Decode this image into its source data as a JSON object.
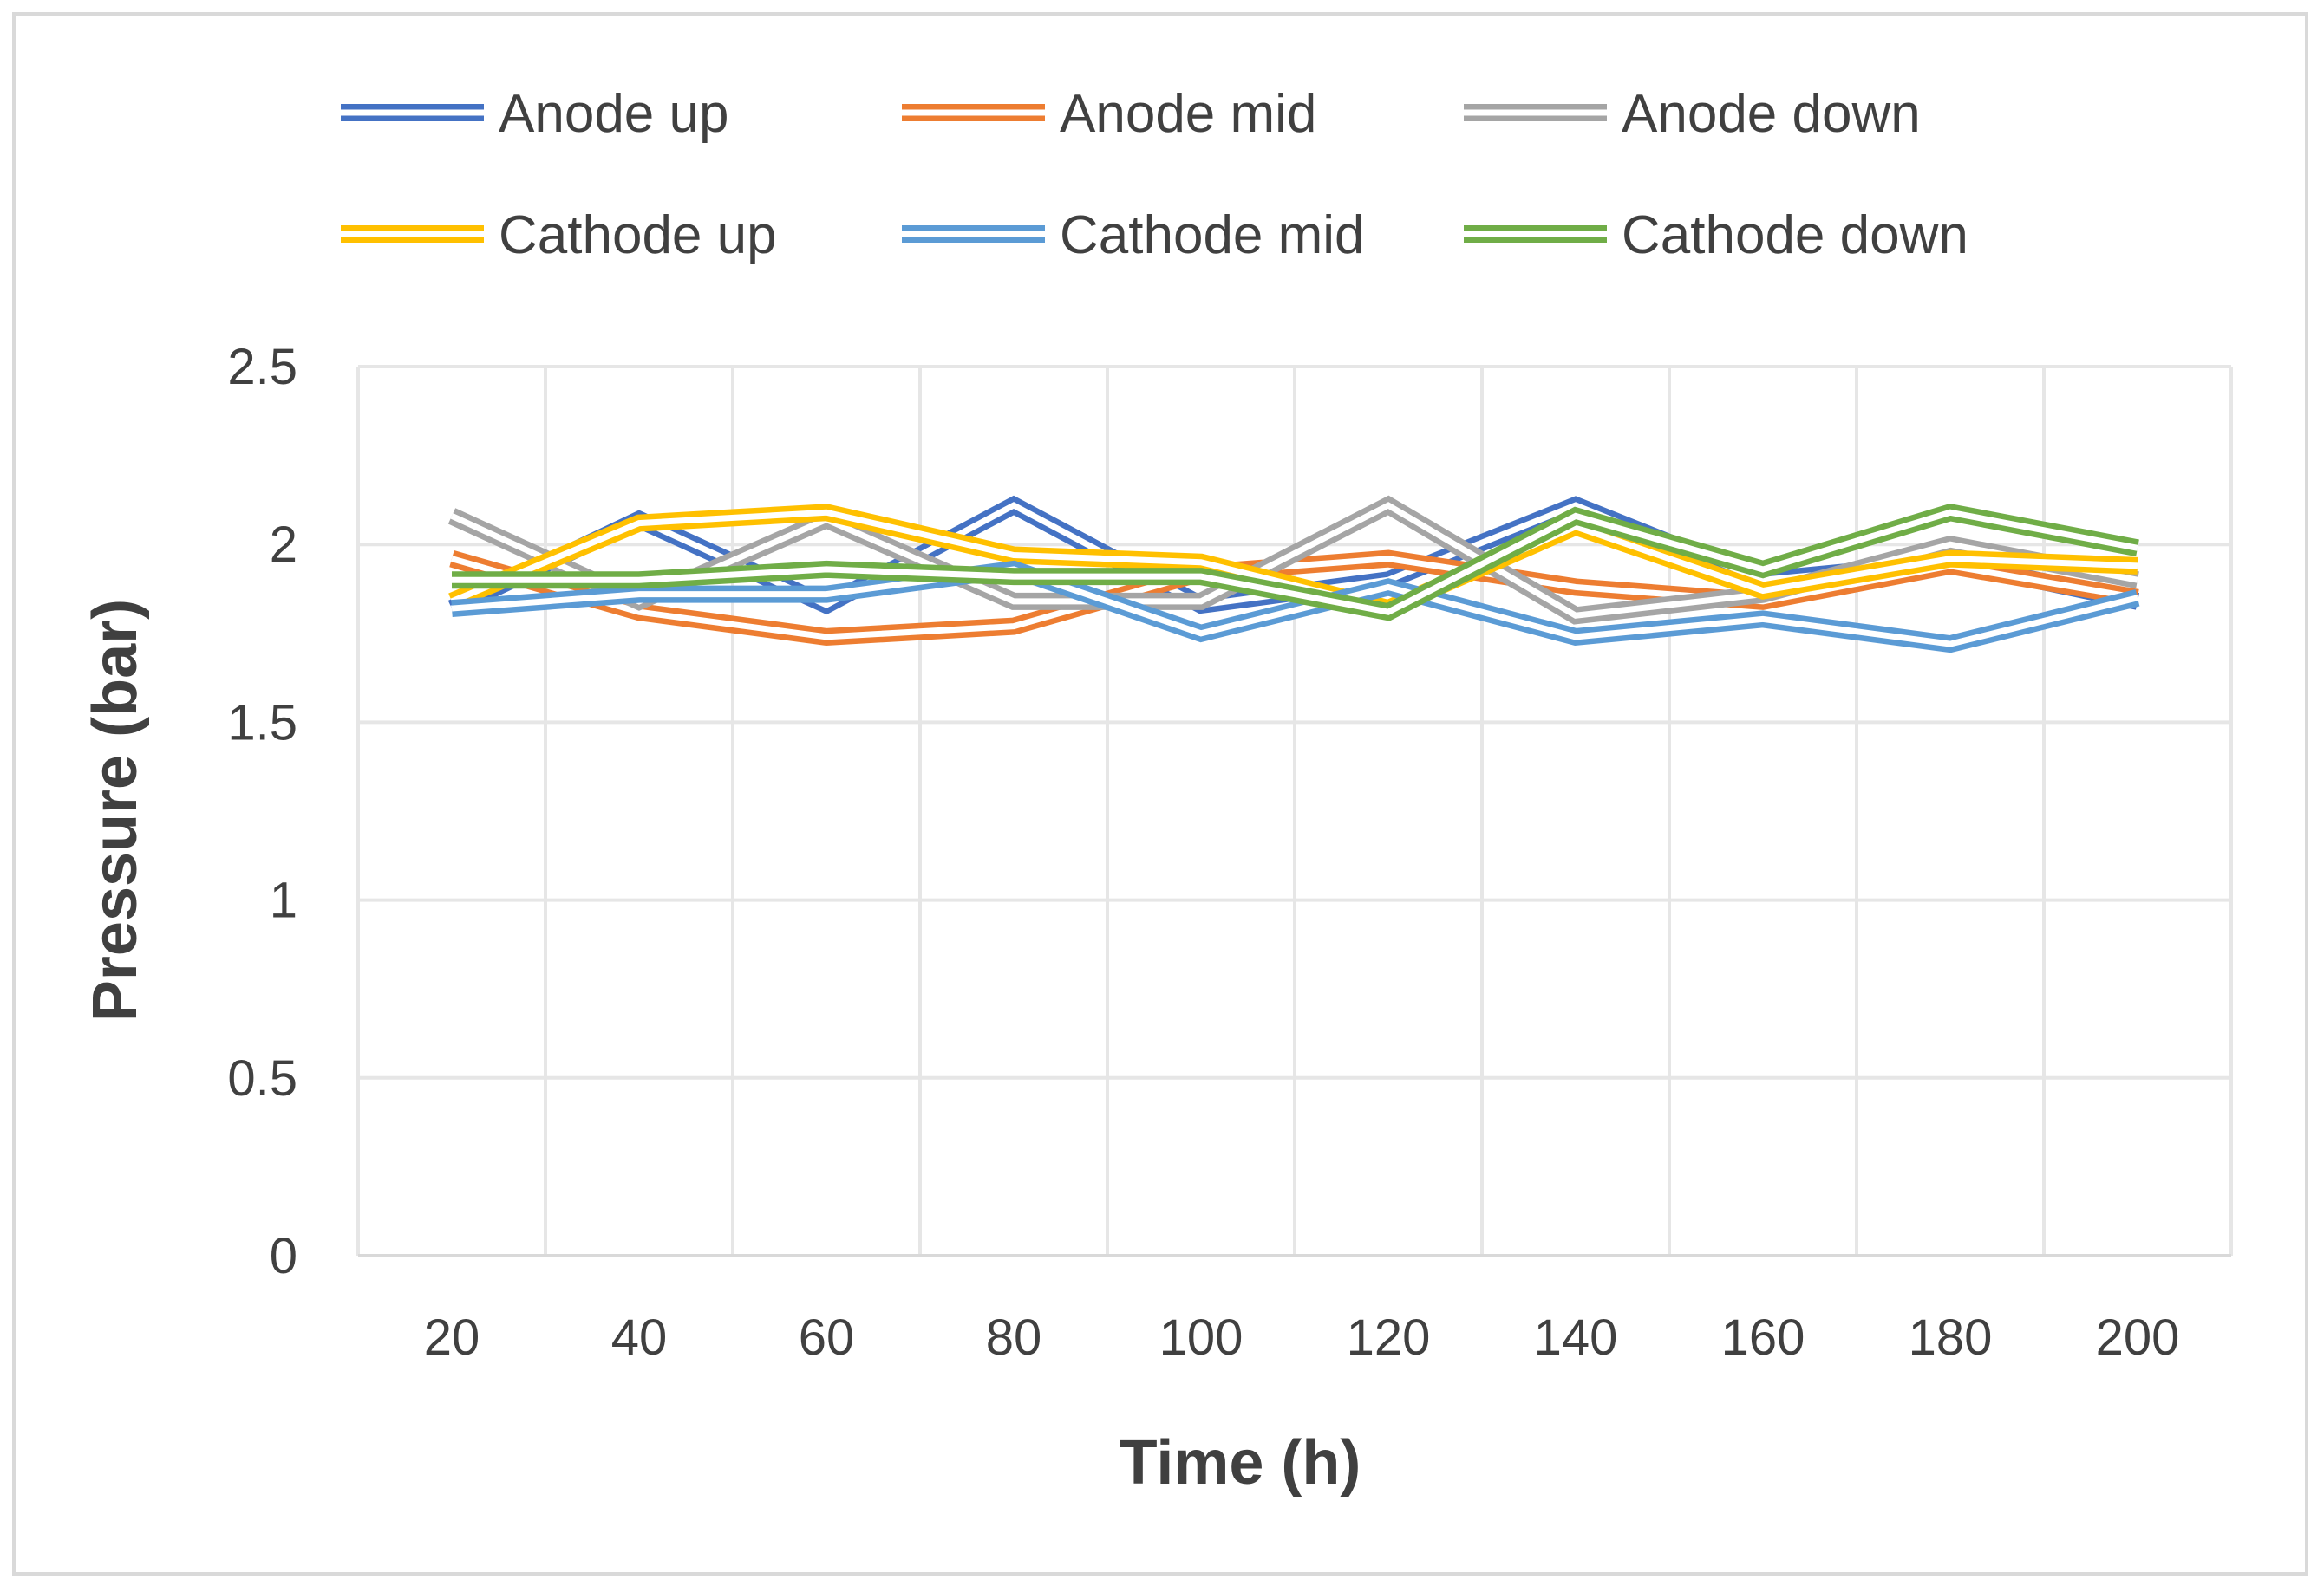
{
  "chart_data": {
    "type": "line",
    "title": "",
    "xlabel": "Time (h)",
    "ylabel": "Pressure (bar)",
    "x": [
      20,
      40,
      60,
      80,
      100,
      120,
      140,
      160,
      180,
      200
    ],
    "ylim": [
      0,
      2.5
    ],
    "yticks": [
      "0",
      "0.5",
      "1",
      "1.5",
      "2",
      "2.5"
    ],
    "xticks": [
      "20",
      "40",
      "60",
      "80",
      "100",
      "120",
      "140",
      "160",
      "180",
      "200"
    ],
    "grid": true,
    "legend_position": "top",
    "series": [
      {
        "name": "Anode up",
        "color": "#4472c4",
        "values": [
          1.82,
          2.07,
          1.83,
          2.11,
          1.83,
          1.9,
          2.11,
          1.9,
          1.95,
          1.84
        ]
      },
      {
        "name": "Anode mid",
        "color": "#ed7d31",
        "values": [
          1.96,
          1.81,
          1.74,
          1.77,
          1.92,
          1.96,
          1.88,
          1.84,
          1.94,
          1.85
        ]
      },
      {
        "name": "Anode down",
        "color": "#a5a5a5",
        "values": [
          2.08,
          1.84,
          2.07,
          1.84,
          1.84,
          2.11,
          1.8,
          1.86,
          2.0,
          1.9
        ]
      },
      {
        "name": "Cathode up",
        "color": "#ffc000",
        "values": [
          1.84,
          2.06,
          2.09,
          1.97,
          1.95,
          1.82,
          2.05,
          1.87,
          1.96,
          1.94
        ]
      },
      {
        "name": "Cathode mid",
        "color": "#5b9bd5",
        "values": [
          1.82,
          1.86,
          1.86,
          1.93,
          1.75,
          1.88,
          1.74,
          1.79,
          1.72,
          1.85
        ]
      },
      {
        "name": "Cathode down",
        "color": "#70ad47",
        "values": [
          1.9,
          1.9,
          1.93,
          1.91,
          1.91,
          1.81,
          2.08,
          1.93,
          2.09,
          1.99
        ]
      }
    ]
  }
}
